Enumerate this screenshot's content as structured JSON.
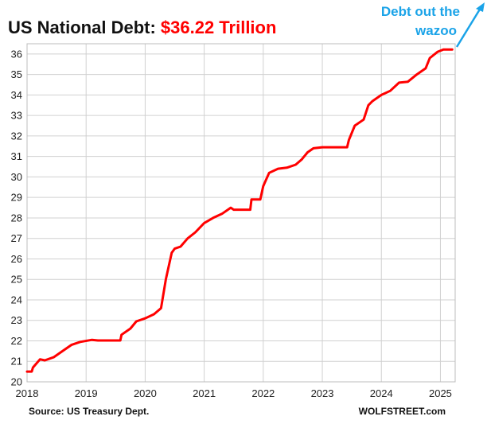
{
  "chart_data": {
    "type": "line",
    "title": "US National Debt: ",
    "title_value": "$36.22 Trillion",
    "xlabel": "",
    "ylabel": "",
    "xlim": [
      2018,
      2025.25
    ],
    "ylim": [
      20,
      36.5
    ],
    "grid": true,
    "x_ticks": [
      "2018",
      "2019",
      "2020",
      "2021",
      "2022",
      "2023",
      "2024",
      "2025"
    ],
    "y_ticks": [
      "20",
      "21",
      "22",
      "23",
      "24",
      "25",
      "26",
      "27",
      "28",
      "29",
      "30",
      "31",
      "32",
      "33",
      "34",
      "35",
      "36"
    ],
    "series": [
      {
        "color": "#ff0000",
        "x": [
          2018.0,
          2018.08,
          2018.1,
          2018.22,
          2018.3,
          2018.45,
          2018.6,
          2018.75,
          2018.9,
          2019.1,
          2019.2,
          2019.4,
          2019.58,
          2019.6,
          2019.75,
          2019.85,
          2020.0,
          2020.15,
          2020.25,
          2020.27,
          2020.35,
          2020.45,
          2020.5,
          2020.6,
          2020.72,
          2020.85,
          2021.0,
          2021.15,
          2021.3,
          2021.45,
          2021.5,
          2021.6,
          2021.78,
          2021.8,
          2021.95,
          2022.0,
          2022.1,
          2022.25,
          2022.4,
          2022.55,
          2022.65,
          2022.75,
          2022.85,
          2023.0,
          2023.2,
          2023.42,
          2023.45,
          2023.55,
          2023.7,
          2023.78,
          2023.85,
          2024.0,
          2024.15,
          2024.3,
          2024.45,
          2024.6,
          2024.75,
          2024.82,
          2024.95,
          2025.05,
          2025.2
        ],
        "y": [
          20.5,
          20.5,
          20.7,
          21.1,
          21.05,
          21.2,
          21.5,
          21.8,
          21.95,
          22.05,
          22.02,
          22.02,
          22.02,
          22.3,
          22.6,
          22.95,
          23.1,
          23.3,
          23.55,
          23.6,
          25.0,
          26.3,
          26.5,
          26.6,
          27.0,
          27.3,
          27.75,
          28.0,
          28.2,
          28.5,
          28.4,
          28.4,
          28.4,
          28.9,
          28.9,
          29.55,
          30.2,
          30.4,
          30.45,
          30.6,
          30.85,
          31.2,
          31.4,
          31.45,
          31.45,
          31.45,
          31.8,
          32.5,
          32.8,
          33.5,
          33.7,
          34.0,
          34.2,
          34.6,
          34.65,
          35.0,
          35.3,
          35.8,
          36.1,
          36.22,
          36.22
        ]
      }
    ]
  },
  "annotation": {
    "line1": "Debt out the",
    "line2": "wazoo"
  },
  "footer": {
    "source": "Source: US Treasury Dept.",
    "brand": "WOLFSTREET.com"
  }
}
